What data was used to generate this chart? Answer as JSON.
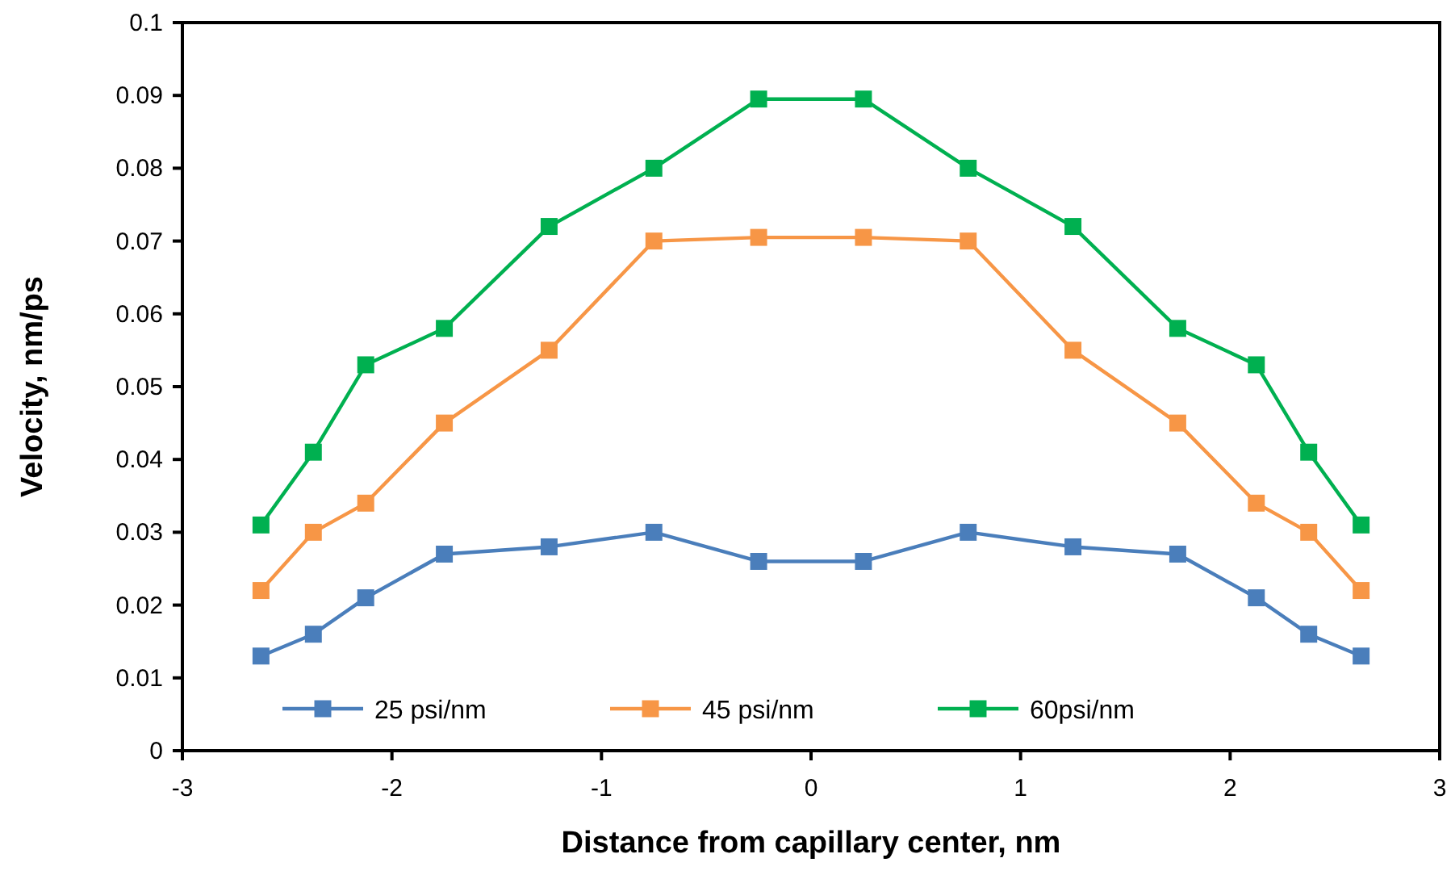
{
  "chart_data": {
    "type": "line",
    "xlabel": "Distance from capillary center, nm",
    "ylabel": "Velocity, nm/ps",
    "x": [
      -2.625,
      -2.375,
      -2.125,
      -1.75,
      -1.25,
      -0.75,
      -0.25,
      0.25,
      0.75,
      1.25,
      1.75,
      2.125,
      2.375,
      2.625
    ],
    "series": [
      {
        "name": "25 psi/nm",
        "color": "#4a7ebb",
        "values": [
          0.013,
          0.016,
          0.021,
          0.027,
          0.028,
          0.03,
          0.026,
          0.026,
          0.03,
          0.028,
          0.027,
          0.021,
          0.016,
          0.013
        ]
      },
      {
        "name": "45 psi/nm",
        "color": "#f79646",
        "values": [
          0.022,
          0.03,
          0.034,
          0.045,
          0.055,
          0.07,
          0.0705,
          0.0705,
          0.07,
          0.055,
          0.045,
          0.034,
          0.03,
          0.022
        ]
      },
      {
        "name": "60psi/nm",
        "color": "#00b050",
        "values": [
          0.031,
          0.041,
          0.053,
          0.058,
          0.072,
          0.08,
          0.0895,
          0.0895,
          0.08,
          0.072,
          0.058,
          0.053,
          0.041,
          0.031
        ]
      }
    ],
    "xlim": [
      -3,
      3
    ],
    "xticks": [
      -3,
      -2,
      -1,
      0,
      1,
      2,
      3
    ],
    "ylim": [
      0,
      0.1
    ],
    "yticks": [
      0,
      0.01,
      0.02,
      0.03,
      0.04,
      0.05,
      0.06,
      0.07,
      0.08,
      0.09,
      0.1
    ],
    "grid": false,
    "legend": "bottom",
    "marker": "square",
    "line_style": "solid"
  }
}
